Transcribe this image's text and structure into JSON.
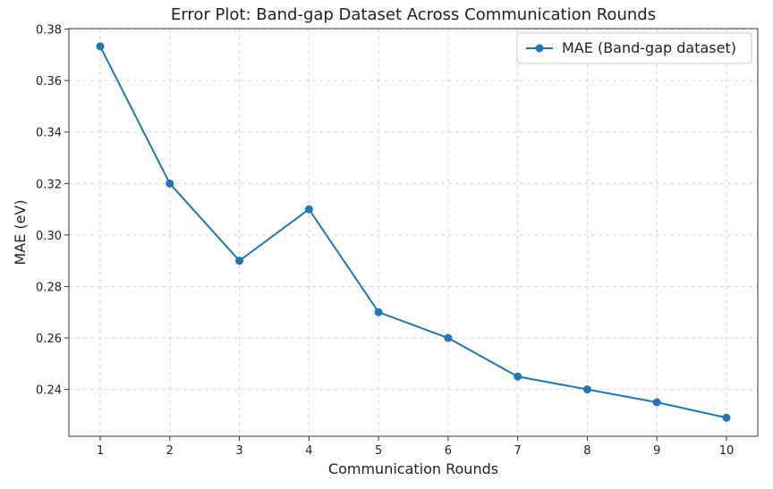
{
  "chart_data": {
    "type": "line",
    "title": "Error Plot: Band-gap Dataset Across Communication Rounds",
    "xlabel": "Communication Rounds",
    "ylabel": "MAE (eV)",
    "x": [
      1,
      2,
      3,
      4,
      5,
      6,
      7,
      8,
      9,
      10
    ],
    "xticks": [
      "1",
      "2",
      "3",
      "4",
      "5",
      "6",
      "7",
      "8",
      "9",
      "10"
    ],
    "yticks": [
      "0.24",
      "0.26",
      "0.28",
      "0.30",
      "0.32",
      "0.34",
      "0.36",
      "0.38"
    ],
    "xlim": [
      0.55,
      10.45
    ],
    "ylim": [
      0.2218,
      0.3802
    ],
    "grid": true,
    "legend_position": "top-right",
    "series": [
      {
        "name": "MAE (Band-gap dataset)",
        "values": [
          0.3733,
          0.32,
          0.29,
          0.31,
          0.27,
          0.26,
          0.245,
          0.24,
          0.235,
          0.229
        ],
        "color": "#1f77b4",
        "marker": "circle"
      }
    ]
  }
}
